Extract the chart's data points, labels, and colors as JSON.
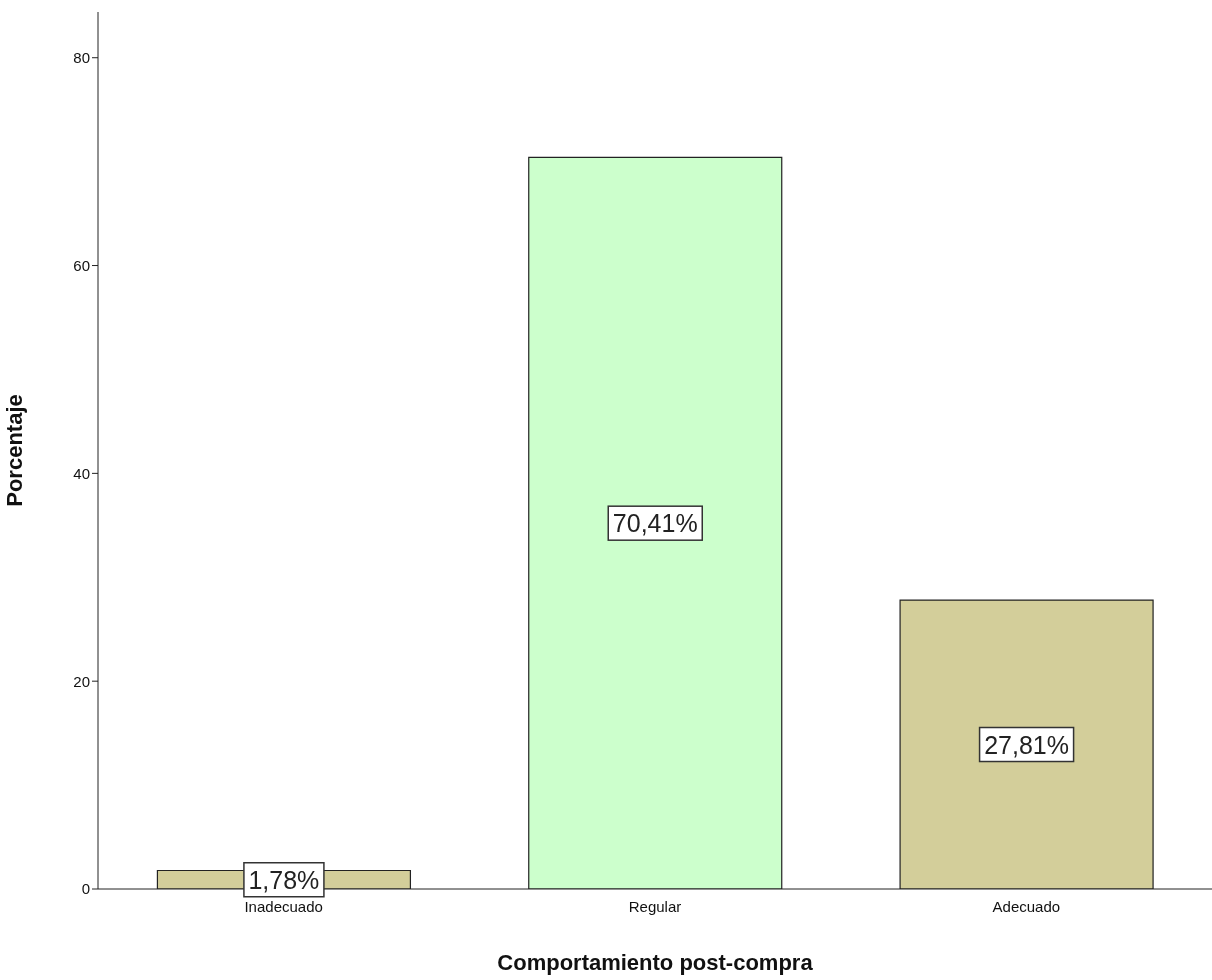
{
  "chart_data": {
    "type": "bar",
    "xlabel": "Comportamiento post-compra",
    "ylabel": "Porcentaje",
    "categories": [
      "Inadecuado",
      "Regular",
      "Adecuado"
    ],
    "values": [
      1.78,
      70.41,
      27.81
    ],
    "value_labels": [
      "1,78%",
      "70,41%",
      "27,81%"
    ],
    "colors": [
      "#d3ce9a",
      "#ccffcc",
      "#d3ce9a"
    ],
    "ylim": [
      0,
      84.4
    ],
    "yticks": [
      0,
      20,
      40,
      60,
      80
    ],
    "grid": false,
    "legend": false
  }
}
